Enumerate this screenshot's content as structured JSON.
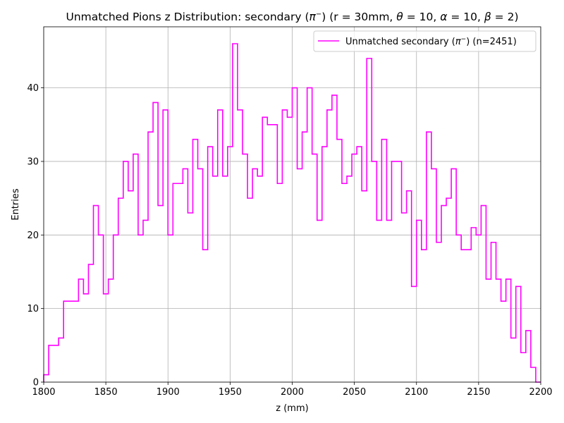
{
  "chart_data": {
    "type": "histogram",
    "title_main": "Unmatched Pions z Distribution: secondary (",
    "title_pi": "π",
    "title_sup": "−",
    "title_params": ") (r = 30mm, ",
    "title_theta": "θ",
    "title_theta_val": " = 10, ",
    "title_alpha": "α",
    "title_alpha_val": " = 10, ",
    "title_beta": "β",
    "title_beta_val": " = 2)",
    "xlabel": "z (mm)",
    "ylabel": "Entries",
    "xlim": [
      1800,
      2200
    ],
    "ylim": [
      0,
      48.3
    ],
    "xticks": [
      1800,
      1850,
      1900,
      1950,
      2000,
      2050,
      2100,
      2150,
      2200
    ],
    "yticks": [
      0,
      10,
      20,
      30,
      40
    ],
    "grid": true,
    "legend_position": "top-right",
    "series": [
      {
        "name": "Unmatched secondary (π⁻) (n=2451)",
        "legend_prefix": "Unmatched secondary (",
        "legend_pi": "π",
        "legend_sup": "−",
        "legend_suffix": ") (n=2451)",
        "color": "#ff00ff",
        "bin_start": 1800,
        "bin_width": 4,
        "counts": [
          1,
          5,
          5,
          6,
          11,
          11,
          11,
          14,
          12,
          16,
          24,
          20,
          12,
          14,
          20,
          25,
          30,
          26,
          31,
          20,
          22,
          34,
          38,
          24,
          37,
          20,
          27,
          27,
          29,
          23,
          33,
          29,
          18,
          32,
          28,
          37,
          28,
          32,
          46,
          37,
          31,
          25,
          29,
          28,
          36,
          35,
          35,
          27,
          37,
          36,
          40,
          29,
          34,
          40,
          31,
          22,
          32,
          37,
          39,
          33,
          27,
          28,
          31,
          32,
          26,
          44,
          30,
          22,
          33,
          22,
          30,
          30,
          23,
          26,
          13,
          22,
          18,
          34,
          29,
          19,
          24,
          25,
          29,
          20,
          18,
          18,
          21,
          20,
          24,
          14,
          19,
          14,
          11,
          14,
          6,
          13,
          4,
          7,
          2,
          0
        ]
      }
    ]
  }
}
